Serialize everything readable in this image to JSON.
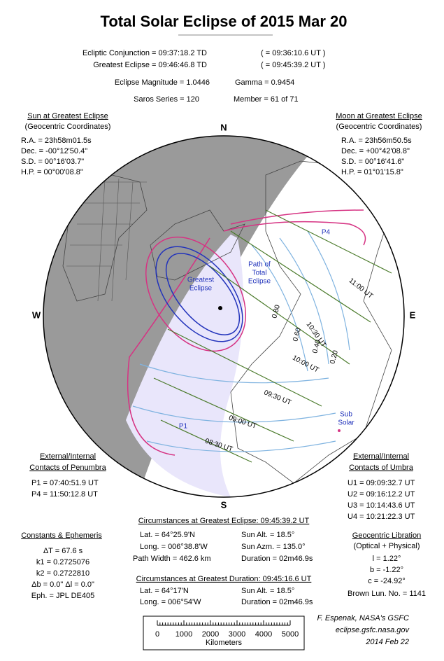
{
  "header": {
    "title": "Total Solar Eclipse of  2015 Mar 20",
    "conjunction": "Ecliptic Conjunction = 09:37:18.2 TD",
    "conjunction_ut": "( = 09:36:10.6 UT )",
    "greatest": "Greatest Eclipse = 09:46:46.8 TD",
    "greatest_ut": "( = 09:45:39.2 UT )",
    "magnitude": "Eclipse Magnitude = 1.0446",
    "gamma": "Gamma = 0.9454",
    "saros": "Saros Series = 120",
    "member": "Member = 61 of 71"
  },
  "sun": {
    "title": "Sun at Greatest Eclipse",
    "subtitle": "(Geocentric Coordinates)",
    "lines": [
      "R.A. = 23h58m01.5s",
      "Dec. = -00°12'50.4\"",
      "S.D. = 00°16'03.7\"",
      "H.P. = 00°00'08.8\""
    ]
  },
  "moon": {
    "title": "Moon at Greatest Eclipse",
    "subtitle": "(Geocentric Coordinates)",
    "lines": [
      "R.A. = 23h56m50.5s",
      "Dec. = +00°42'08.8\"",
      "S.D. = 00°16'41.6\"",
      "H.P. = 01°01'15.8\""
    ]
  },
  "map": {
    "north": "N",
    "south": "S",
    "west": "W",
    "east": "E",
    "p1": "P1",
    "p4": "P4",
    "path": [
      "Path of",
      "Total",
      "Eclipse"
    ],
    "greatest": [
      "Greatest",
      "Eclipse"
    ],
    "subsolar": [
      "Sub",
      "Solar"
    ],
    "times": [
      "08:30 UT",
      "09:00 UT",
      "09:30 UT",
      "10:00 UT",
      "10:30 UT",
      "11:00 UT"
    ],
    "magnitudes": [
      "0.80",
      "0.60",
      "0.40",
      "0.20"
    ]
  },
  "penumbra": {
    "title": [
      "External/Internal",
      "Contacts of Penumbra"
    ],
    "lines": [
      "P1 = 07:40:51.9 UT",
      "P4 = 11:50:12.8 UT"
    ]
  },
  "umbra": {
    "title": [
      "External/Internal",
      "Contacts of Umbra"
    ],
    "lines": [
      "U1 = 09:09:32.7 UT",
      "U2 = 09:16:12.2 UT",
      "U3 = 10:14:43.6 UT",
      "U4 = 10:21:22.3 UT"
    ]
  },
  "constants": {
    "title": "Constants & Ephemeris",
    "lines": [
      "ΔT =     67.6 s",
      "k1 = 0.2725076",
      "k2 = 0.2722810",
      "Δb =  0.0\"    Δl =  0.0\"",
      "Eph. = JPL DE405"
    ]
  },
  "greatest_circ": {
    "title": "Circumstances at Greatest Eclipse:  09:45:39.2 UT",
    "rows": [
      [
        "Lat. =  64°25.9'N",
        "Sun Alt. =   18.5°"
      ],
      [
        "Long. = 006°38.8'W",
        "Sun Azm. = 135.0°"
      ],
      [
        "Path Width = 462.6 km",
        "Duration =  02m46.9s"
      ]
    ]
  },
  "duration_circ": {
    "title": "Circumstances at Greatest Duration:  09:45:16.6 UT",
    "rows": [
      [
        "Lat. =  64°17'N",
        "Sun Alt. =   18.5°"
      ],
      [
        "Long. = 006°54'W",
        "Duration =  02m46.9s"
      ]
    ]
  },
  "libration": {
    "title": "Geocentric Libration",
    "subtitle": "(Optical + Physical)",
    "lines": [
      "l =    1.22°",
      "b =   -1.22°",
      "c = -24.92°"
    ],
    "brown": "Brown Lun. No. = 1141"
  },
  "scale": {
    "ticks": [
      "0",
      "1000",
      "2000",
      "3000",
      "4000",
      "5000"
    ],
    "unit": "Kilometers"
  },
  "credits": [
    "F. Espenak, NASA's GSFC",
    "eclipse.gsfc.nasa.gov",
    "2014 Feb 22"
  ]
}
